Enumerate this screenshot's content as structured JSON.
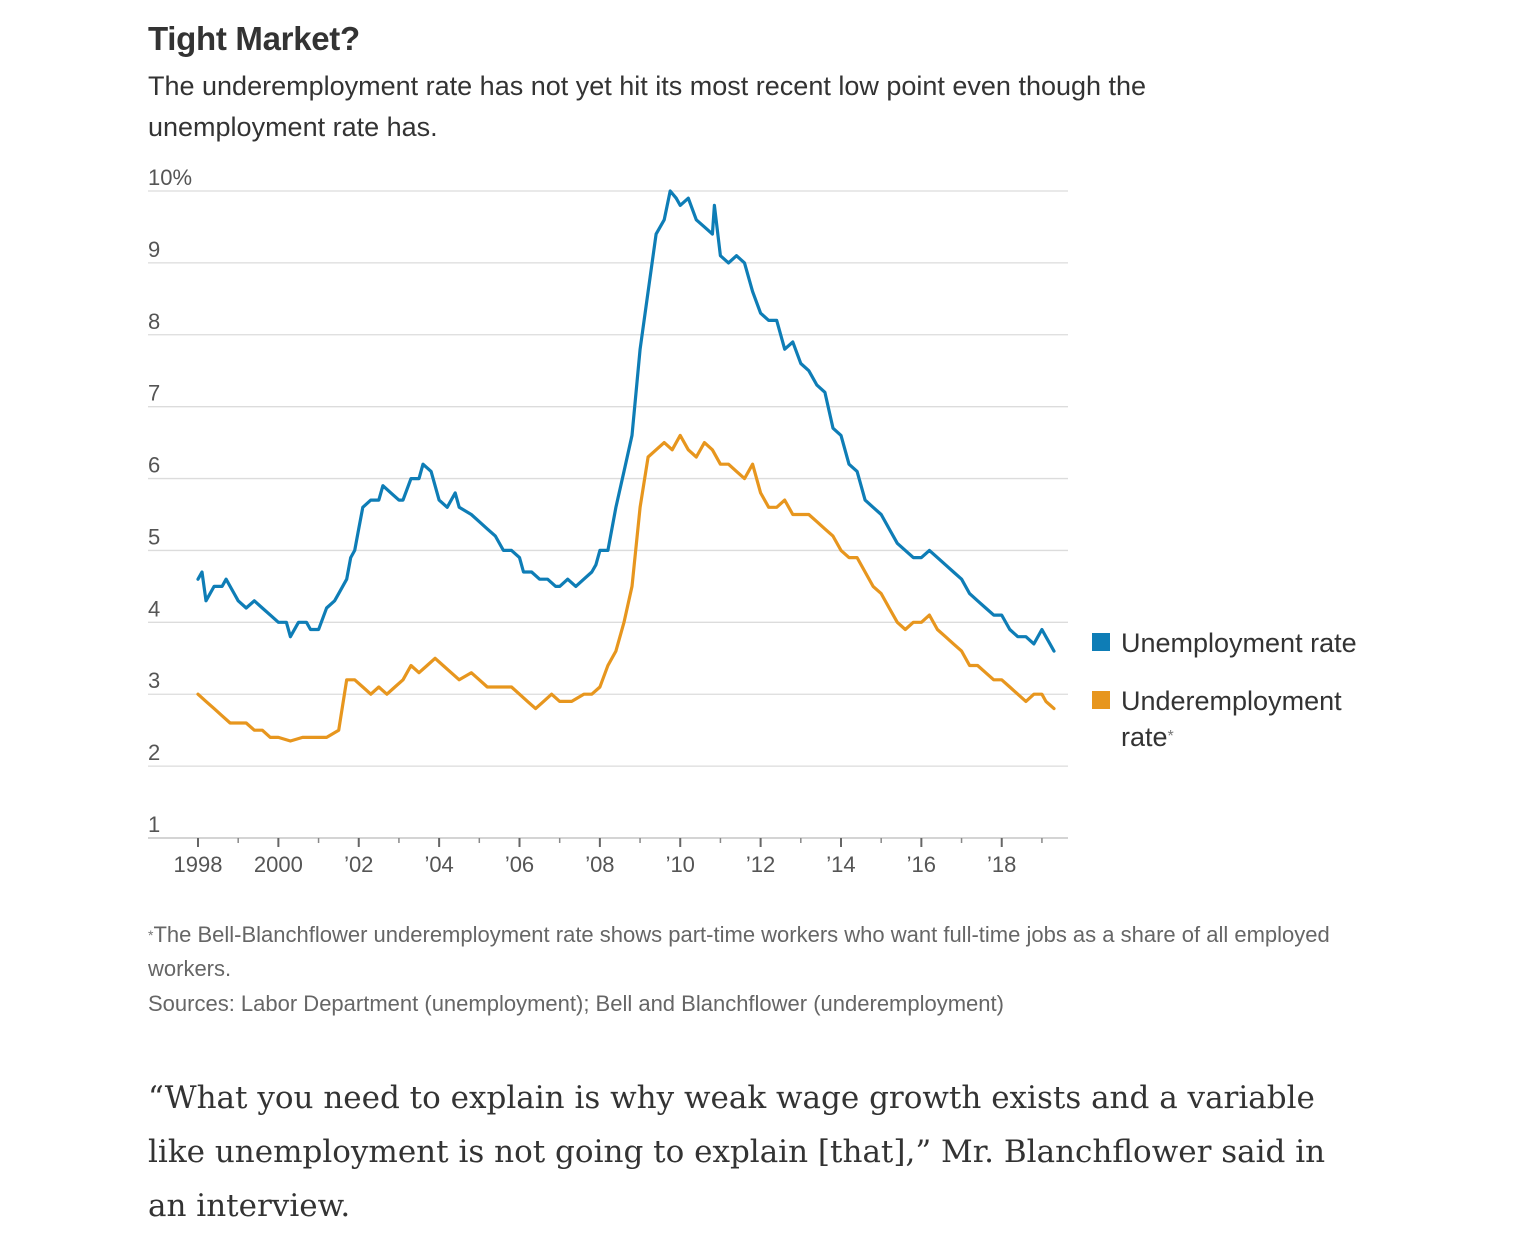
{
  "title": "Tight Market?",
  "subtitle": "The underemployment rate has not yet hit its most recent low point even though the unemployment rate has.",
  "colors": {
    "unemployment": "#0e7db6",
    "underemployment": "#e7961e",
    "grid": "#dcdcdc",
    "axis": "#bbbbbb"
  },
  "chart_data": {
    "type": "line",
    "x_unit": "year",
    "xlim": [
      1998,
      2019.4
    ],
    "ylim": [
      1,
      10
    ],
    "y_ticks": [
      {
        "value": 10,
        "label": "10%"
      },
      {
        "value": 9,
        "label": "9"
      },
      {
        "value": 8,
        "label": "8"
      },
      {
        "value": 7,
        "label": "7"
      },
      {
        "value": 6,
        "label": "6"
      },
      {
        "value": 5,
        "label": "5"
      },
      {
        "value": 4,
        "label": "4"
      },
      {
        "value": 3,
        "label": "3"
      },
      {
        "value": 2,
        "label": "2"
      },
      {
        "value": 1,
        "label": "1"
      }
    ],
    "x_ticks": [
      {
        "value": 1998,
        "label": "1998"
      },
      {
        "value": 2000,
        "label": "2000"
      },
      {
        "value": 2002,
        "label": "’02"
      },
      {
        "value": 2004,
        "label": "’04"
      },
      {
        "value": 2006,
        "label": "’06"
      },
      {
        "value": 2008,
        "label": "’08"
      },
      {
        "value": 2010,
        "label": "’10"
      },
      {
        "value": 2012,
        "label": "’12"
      },
      {
        "value": 2014,
        "label": "’14"
      },
      {
        "value": 2016,
        "label": "’16"
      },
      {
        "value": 2018,
        "label": "’18"
      }
    ],
    "minor_x_ticks": [
      1999,
      2001,
      2003,
      2005,
      2007,
      2009,
      2011,
      2013,
      2015,
      2017,
      2019
    ],
    "grid": true,
    "legend_position": "right",
    "series": [
      {
        "name": "Unemployment rate",
        "color": "#0e7db6",
        "points": [
          [
            1998.0,
            4.6
          ],
          [
            1998.1,
            4.7
          ],
          [
            1998.2,
            4.3
          ],
          [
            1998.4,
            4.5
          ],
          [
            1998.6,
            4.5
          ],
          [
            1998.7,
            4.6
          ],
          [
            1998.9,
            4.4
          ],
          [
            1999.0,
            4.3
          ],
          [
            1999.2,
            4.2
          ],
          [
            1999.4,
            4.3
          ],
          [
            1999.6,
            4.2
          ],
          [
            1999.8,
            4.1
          ],
          [
            2000.0,
            4.0
          ],
          [
            2000.2,
            4.0
          ],
          [
            2000.3,
            3.8
          ],
          [
            2000.5,
            4.0
          ],
          [
            2000.7,
            4.0
          ],
          [
            2000.8,
            3.9
          ],
          [
            2001.0,
            3.9
          ],
          [
            2001.2,
            4.2
          ],
          [
            2001.4,
            4.3
          ],
          [
            2001.5,
            4.4
          ],
          [
            2001.7,
            4.6
          ],
          [
            2001.8,
            4.9
          ],
          [
            2001.9,
            5.0
          ],
          [
            2002.0,
            5.3
          ],
          [
            2002.1,
            5.6
          ],
          [
            2002.3,
            5.7
          ],
          [
            2002.5,
            5.7
          ],
          [
            2002.6,
            5.9
          ],
          [
            2002.8,
            5.8
          ],
          [
            2003.0,
            5.7
          ],
          [
            2003.1,
            5.7
          ],
          [
            2003.3,
            6.0
          ],
          [
            2003.5,
            6.0
          ],
          [
            2003.6,
            6.2
          ],
          [
            2003.8,
            6.1
          ],
          [
            2004.0,
            5.7
          ],
          [
            2004.2,
            5.6
          ],
          [
            2004.4,
            5.8
          ],
          [
            2004.5,
            5.6
          ],
          [
            2004.8,
            5.5
          ],
          [
            2005.0,
            5.4
          ],
          [
            2005.2,
            5.3
          ],
          [
            2005.4,
            5.2
          ],
          [
            2005.6,
            5.0
          ],
          [
            2005.8,
            5.0
          ],
          [
            2006.0,
            4.9
          ],
          [
            2006.1,
            4.7
          ],
          [
            2006.3,
            4.7
          ],
          [
            2006.5,
            4.6
          ],
          [
            2006.7,
            4.6
          ],
          [
            2006.9,
            4.5
          ],
          [
            2007.0,
            4.5
          ],
          [
            2007.2,
            4.6
          ],
          [
            2007.4,
            4.5
          ],
          [
            2007.6,
            4.6
          ],
          [
            2007.8,
            4.7
          ],
          [
            2007.9,
            4.8
          ],
          [
            2008.0,
            5.0
          ],
          [
            2008.2,
            5.0
          ],
          [
            2008.4,
            5.6
          ],
          [
            2008.6,
            6.1
          ],
          [
            2008.8,
            6.6
          ],
          [
            2009.0,
            7.8
          ],
          [
            2009.2,
            8.6
          ],
          [
            2009.4,
            9.4
          ],
          [
            2009.6,
            9.6
          ],
          [
            2009.75,
            10.0
          ],
          [
            2009.9,
            9.9
          ],
          [
            2010.0,
            9.8
          ],
          [
            2010.2,
            9.9
          ],
          [
            2010.4,
            9.6
          ],
          [
            2010.6,
            9.5
          ],
          [
            2010.8,
            9.4
          ],
          [
            2010.85,
            9.8
          ],
          [
            2011.0,
            9.1
          ],
          [
            2011.2,
            9.0
          ],
          [
            2011.4,
            9.1
          ],
          [
            2011.6,
            9.0
          ],
          [
            2011.8,
            8.6
          ],
          [
            2012.0,
            8.3
          ],
          [
            2012.2,
            8.2
          ],
          [
            2012.4,
            8.2
          ],
          [
            2012.6,
            7.8
          ],
          [
            2012.8,
            7.9
          ],
          [
            2013.0,
            7.6
          ],
          [
            2013.2,
            7.5
          ],
          [
            2013.4,
            7.3
          ],
          [
            2013.6,
            7.2
          ],
          [
            2013.8,
            6.7
          ],
          [
            2014.0,
            6.6
          ],
          [
            2014.2,
            6.2
          ],
          [
            2014.4,
            6.1
          ],
          [
            2014.6,
            5.7
          ],
          [
            2014.8,
            5.6
          ],
          [
            2015.0,
            5.5
          ],
          [
            2015.2,
            5.3
          ],
          [
            2015.4,
            5.1
          ],
          [
            2015.6,
            5.0
          ],
          [
            2015.8,
            4.9
          ],
          [
            2016.0,
            4.9
          ],
          [
            2016.2,
            5.0
          ],
          [
            2016.4,
            4.9
          ],
          [
            2016.6,
            4.8
          ],
          [
            2016.8,
            4.7
          ],
          [
            2017.0,
            4.6
          ],
          [
            2017.2,
            4.4
          ],
          [
            2017.4,
            4.3
          ],
          [
            2017.6,
            4.2
          ],
          [
            2017.8,
            4.1
          ],
          [
            2018.0,
            4.1
          ],
          [
            2018.2,
            3.9
          ],
          [
            2018.4,
            3.8
          ],
          [
            2018.6,
            3.8
          ],
          [
            2018.8,
            3.7
          ],
          [
            2019.0,
            3.9
          ],
          [
            2019.1,
            3.8
          ],
          [
            2019.2,
            3.7
          ],
          [
            2019.3,
            3.6
          ]
        ]
      },
      {
        "name": "Underemployment rate",
        "color": "#e7961e",
        "points": [
          [
            1998.0,
            3.0
          ],
          [
            1998.2,
            2.9
          ],
          [
            1998.4,
            2.8
          ],
          [
            1998.6,
            2.7
          ],
          [
            1998.8,
            2.6
          ],
          [
            1999.0,
            2.6
          ],
          [
            1999.2,
            2.6
          ],
          [
            1999.4,
            2.5
          ],
          [
            1999.6,
            2.5
          ],
          [
            1999.8,
            2.4
          ],
          [
            2000.0,
            2.4
          ],
          [
            2000.3,
            2.35
          ],
          [
            2000.6,
            2.4
          ],
          [
            2000.9,
            2.4
          ],
          [
            2001.2,
            2.4
          ],
          [
            2001.5,
            2.5
          ],
          [
            2001.7,
            3.2
          ],
          [
            2001.9,
            3.2
          ],
          [
            2002.1,
            3.1
          ],
          [
            2002.3,
            3.0
          ],
          [
            2002.5,
            3.1
          ],
          [
            2002.7,
            3.0
          ],
          [
            2002.9,
            3.1
          ],
          [
            2003.1,
            3.2
          ],
          [
            2003.3,
            3.4
          ],
          [
            2003.5,
            3.3
          ],
          [
            2003.7,
            3.4
          ],
          [
            2003.9,
            3.5
          ],
          [
            2004.1,
            3.4
          ],
          [
            2004.3,
            3.3
          ],
          [
            2004.5,
            3.2
          ],
          [
            2004.8,
            3.3
          ],
          [
            2005.0,
            3.2
          ],
          [
            2005.2,
            3.1
          ],
          [
            2005.5,
            3.1
          ],
          [
            2005.8,
            3.1
          ],
          [
            2006.0,
            3.0
          ],
          [
            2006.2,
            2.9
          ],
          [
            2006.4,
            2.8
          ],
          [
            2006.6,
            2.9
          ],
          [
            2006.8,
            3.0
          ],
          [
            2007.0,
            2.9
          ],
          [
            2007.3,
            2.9
          ],
          [
            2007.6,
            3.0
          ],
          [
            2007.8,
            3.0
          ],
          [
            2008.0,
            3.1
          ],
          [
            2008.2,
            3.4
          ],
          [
            2008.4,
            3.6
          ],
          [
            2008.6,
            4.0
          ],
          [
            2008.8,
            4.5
          ],
          [
            2009.0,
            5.6
          ],
          [
            2009.2,
            6.3
          ],
          [
            2009.4,
            6.4
          ],
          [
            2009.6,
            6.5
          ],
          [
            2009.8,
            6.4
          ],
          [
            2010.0,
            6.6
          ],
          [
            2010.2,
            6.4
          ],
          [
            2010.4,
            6.3
          ],
          [
            2010.6,
            6.5
          ],
          [
            2010.8,
            6.4
          ],
          [
            2011.0,
            6.2
          ],
          [
            2011.2,
            6.2
          ],
          [
            2011.4,
            6.1
          ],
          [
            2011.6,
            6.0
          ],
          [
            2011.8,
            6.2
          ],
          [
            2012.0,
            5.8
          ],
          [
            2012.2,
            5.6
          ],
          [
            2012.4,
            5.6
          ],
          [
            2012.6,
            5.7
          ],
          [
            2012.8,
            5.5
          ],
          [
            2013.0,
            5.5
          ],
          [
            2013.2,
            5.5
          ],
          [
            2013.4,
            5.4
          ],
          [
            2013.6,
            5.3
          ],
          [
            2013.8,
            5.2
          ],
          [
            2014.0,
            5.0
          ],
          [
            2014.2,
            4.9
          ],
          [
            2014.4,
            4.9
          ],
          [
            2014.6,
            4.7
          ],
          [
            2014.8,
            4.5
          ],
          [
            2015.0,
            4.4
          ],
          [
            2015.2,
            4.2
          ],
          [
            2015.4,
            4.0
          ],
          [
            2015.6,
            3.9
          ],
          [
            2015.8,
            4.0
          ],
          [
            2016.0,
            4.0
          ],
          [
            2016.2,
            4.1
          ],
          [
            2016.4,
            3.9
          ],
          [
            2016.6,
            3.8
          ],
          [
            2016.8,
            3.7
          ],
          [
            2017.0,
            3.6
          ],
          [
            2017.2,
            3.4
          ],
          [
            2017.4,
            3.4
          ],
          [
            2017.6,
            3.3
          ],
          [
            2017.8,
            3.2
          ],
          [
            2018.0,
            3.2
          ],
          [
            2018.2,
            3.1
          ],
          [
            2018.4,
            3.0
          ],
          [
            2018.6,
            2.9
          ],
          [
            2018.8,
            3.0
          ],
          [
            2019.0,
            3.0
          ],
          [
            2019.1,
            2.9
          ],
          [
            2019.2,
            2.85
          ],
          [
            2019.3,
            2.8
          ]
        ]
      }
    ]
  },
  "legend": {
    "unemployment_label": "Unemployment rate",
    "underemployment_label": "Underemployment rate",
    "underemployment_mark": "*"
  },
  "footnote": {
    "mark": "*",
    "text": "The Bell-Blanchflower underemployment rate shows part-time workers who want full-time jobs as a share of all employed workers."
  },
  "source": "Sources: Labor Department (unemployment); Bell and Blanchflower (underemployment)",
  "quote": "“What you need to explain is why weak wage growth exists and a variable like unemployment is not going to explain [that],” Mr. Blanchflower said in an interview."
}
